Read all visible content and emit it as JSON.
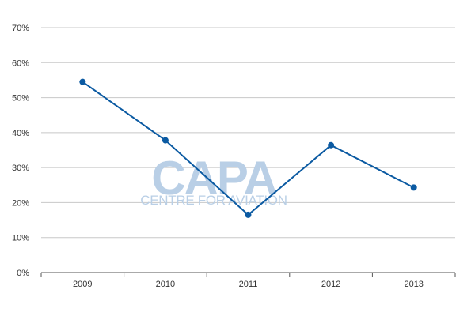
{
  "chart_data": {
    "type": "line",
    "title": "",
    "xlabel": "",
    "ylabel": "",
    "categories": [
      "2009",
      "2010",
      "2011",
      "2012",
      "2013"
    ],
    "series": [
      {
        "values": [
          54.5,
          37.8,
          16.5,
          36.4,
          24.3
        ],
        "color": "#0b5aa2"
      }
    ],
    "ylim": [
      0,
      70
    ],
    "y_ticks": [
      0,
      10,
      20,
      30,
      40,
      50,
      60,
      70
    ],
    "y_tick_labels": [
      "0%",
      "10%",
      "20%",
      "30%",
      "40%",
      "50%",
      "60%",
      "70%"
    ],
    "grid": true,
    "legend": "none"
  },
  "watermark": {
    "logo_text": "CAPA",
    "subtitle": "CENTRE FOR AVIATION",
    "color": "#b9cfe6"
  }
}
